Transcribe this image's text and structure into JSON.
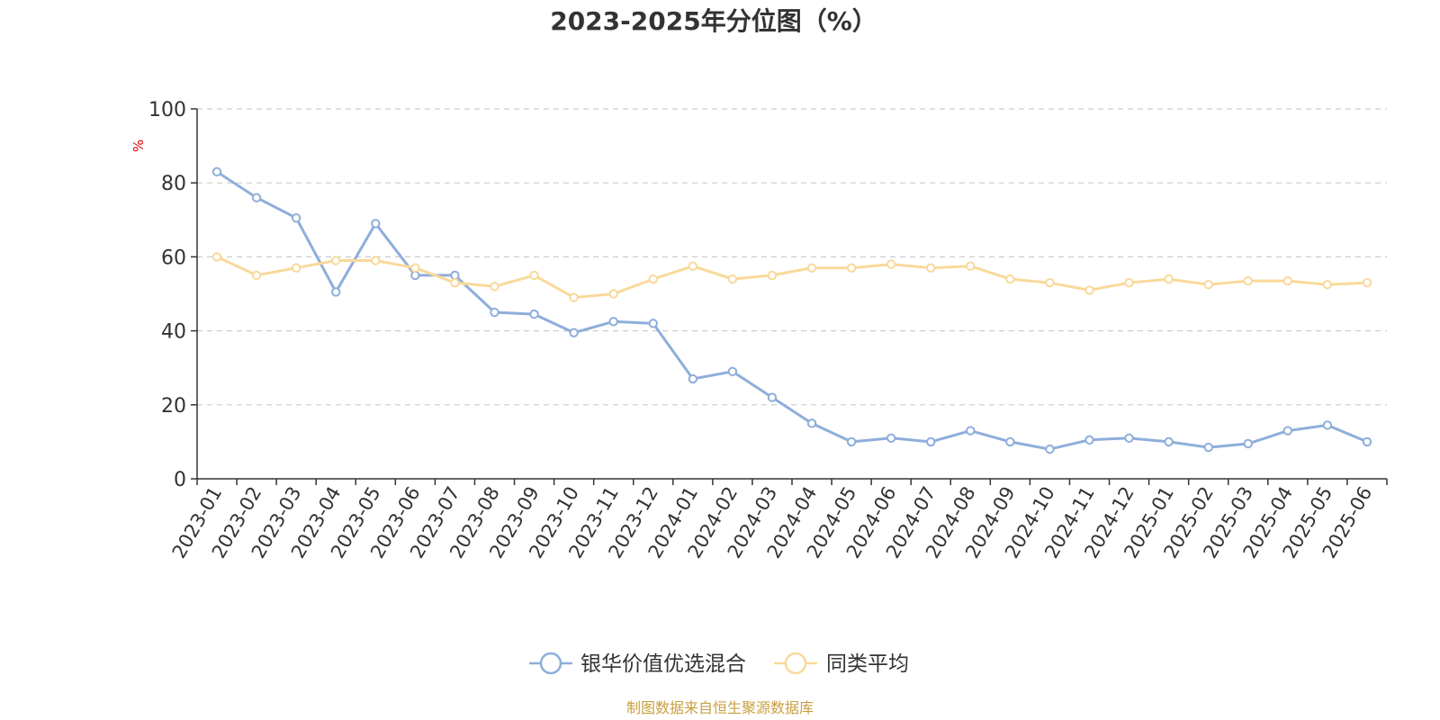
{
  "chart_data": {
    "type": "line",
    "title": "2023-2025年分位图（%）",
    "ylabel": "%",
    "xlabel": "",
    "ylim": [
      0,
      100
    ],
    "yticks": [
      0,
      20,
      40,
      60,
      80,
      100
    ],
    "grid": "horizontal dashed",
    "legend_position": "bottom-center",
    "categories": [
      "2023-01",
      "2023-02",
      "2023-03",
      "2023-04",
      "2023-05",
      "2023-06",
      "2023-07",
      "2023-08",
      "2023-09",
      "2023-10",
      "2023-11",
      "2023-12",
      "2024-01",
      "2024-02",
      "2024-03",
      "2024-04",
      "2024-05",
      "2024-06",
      "2024-07",
      "2024-08",
      "2024-09",
      "2024-10",
      "2024-11",
      "2024-12",
      "2025-01",
      "2025-02",
      "2025-03",
      "2025-04",
      "2025-05",
      "2025-06"
    ],
    "series": [
      {
        "name": "银华价值优选混合",
        "color": "#8eaedb",
        "values": [
          83,
          76,
          70.5,
          50.5,
          69,
          55,
          55,
          45,
          44.5,
          39.5,
          42.5,
          42,
          27,
          29,
          22,
          15,
          10,
          11,
          10,
          13,
          10,
          8,
          10.5,
          11,
          10,
          8.5,
          9.5,
          13,
          14.5,
          10
        ]
      },
      {
        "name": "同类平均",
        "color": "#f9d99a",
        "values": [
          60,
          55,
          57,
          59,
          59,
          57,
          53,
          52,
          55,
          49,
          50,
          54,
          57.5,
          54,
          55,
          57,
          57,
          58,
          57,
          57.5,
          54,
          53,
          51,
          53,
          54,
          52.5,
          53.5,
          53.5,
          52.5,
          53
        ]
      }
    ],
    "source": "制图数据来自恒生聚源数据库"
  }
}
